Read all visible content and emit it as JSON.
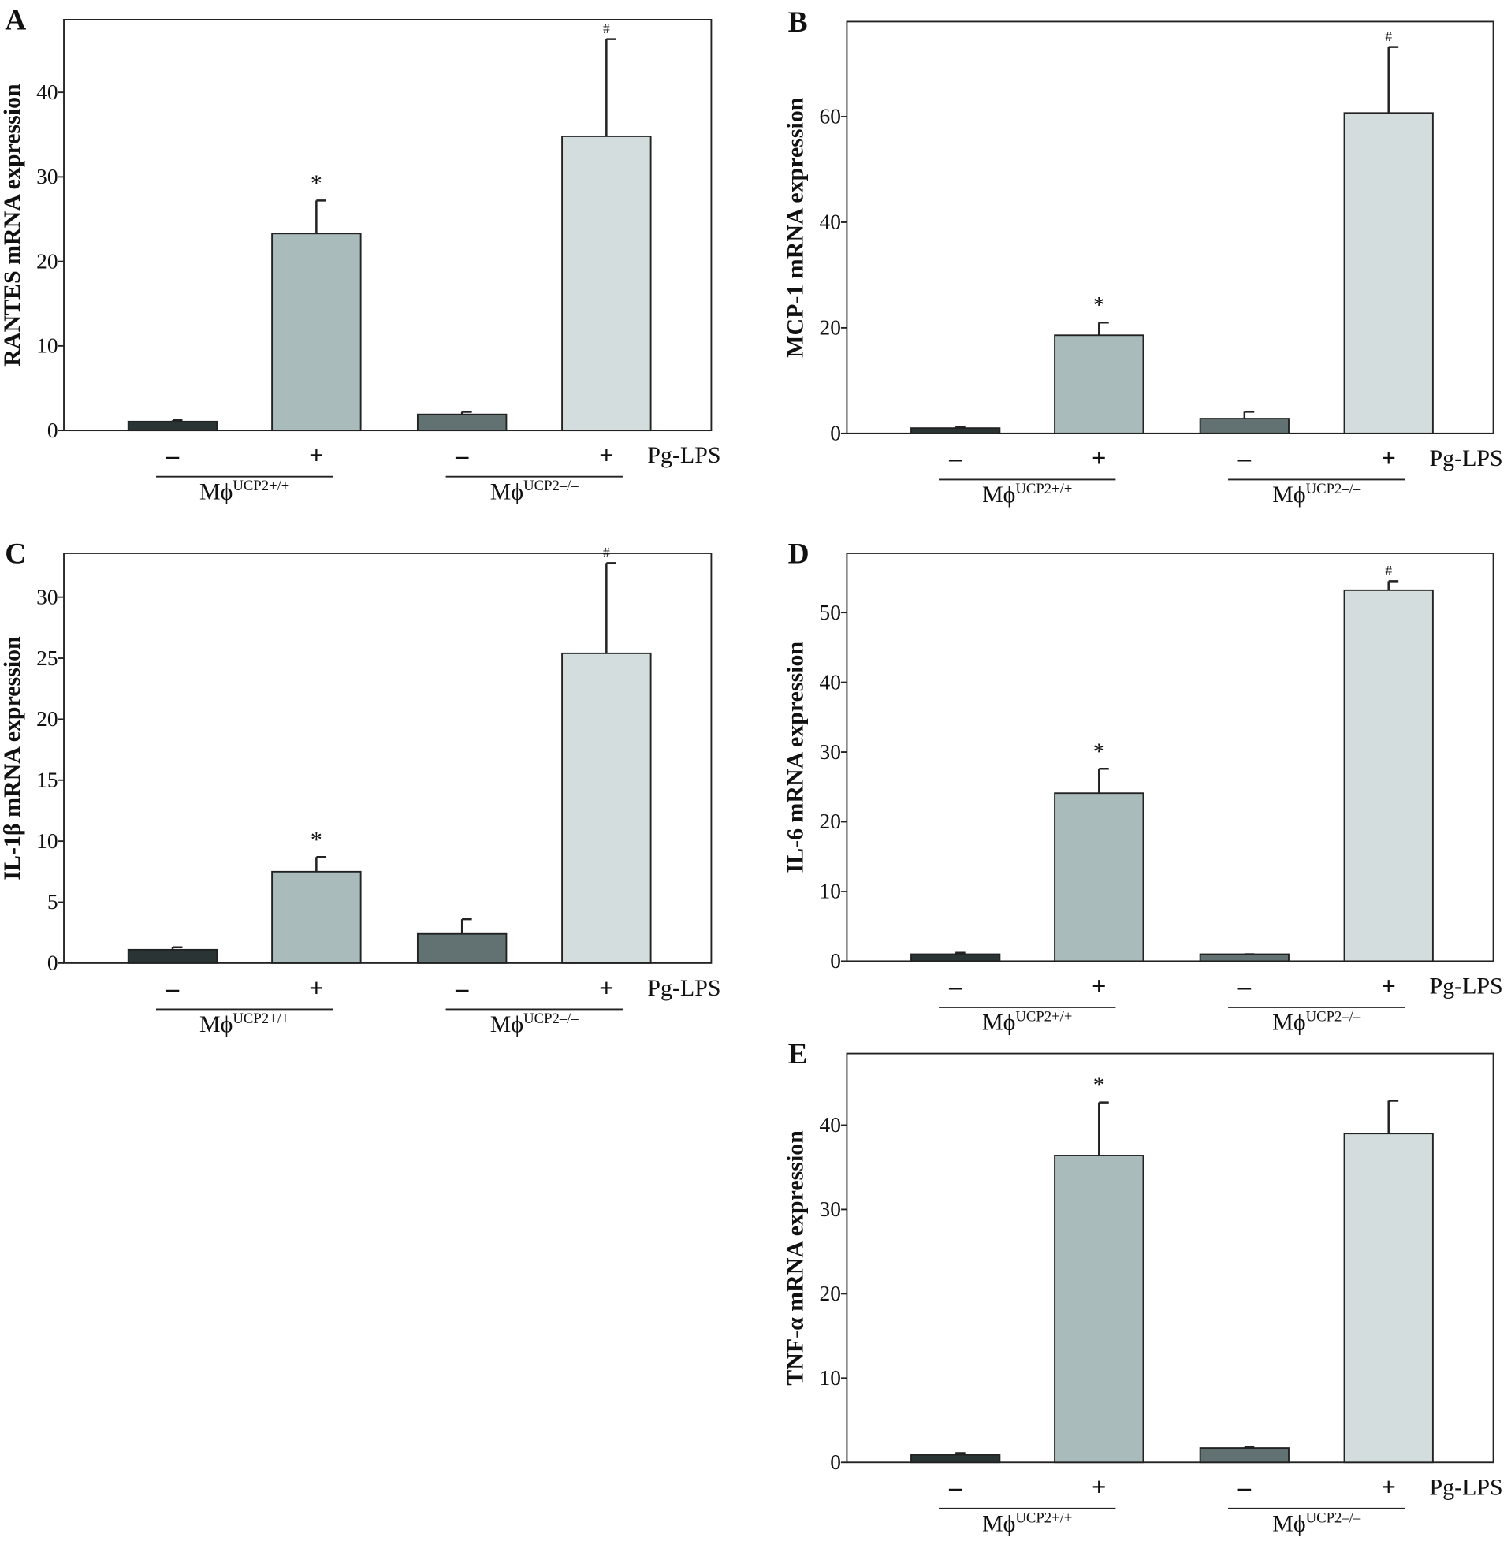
{
  "chart_data": [
    {
      "type": "bar",
      "panel": "A",
      "ylabel": "RANTES mRNA expression",
      "categories": [
        "–",
        "+",
        "–",
        "+"
      ],
      "xlabel": "Pg-LPS",
      "groups": [
        {
          "text": "Mϕ",
          "superscript": "UCP2+/+"
        },
        {
          "text": "Mϕ",
          "superscript": "UCP2–/–"
        }
      ],
      "values": [
        1.05,
        23.3,
        1.9,
        34.8
      ],
      "errors": [
        0.15,
        3.9,
        0.3,
        11.5
      ],
      "annotations": [
        null,
        "*",
        null,
        "#"
      ],
      "colors": [
        "#2a3434",
        "#a9bbbb",
        "#627272",
        "#d4dddd"
      ],
      "ylim": [
        0,
        48.6
      ],
      "yticks": [
        0,
        10,
        20,
        30,
        40
      ]
    },
    {
      "type": "bar",
      "panel": "B",
      "ylabel": "MCP-1 mRNA expression",
      "categories": [
        "–",
        "+",
        "–",
        "+"
      ],
      "xlabel": "Pg-LPS",
      "groups": [
        {
          "text": "Mϕ",
          "superscript": "UCP2+/+"
        },
        {
          "text": "Mϕ",
          "superscript": "UCP2–/–"
        }
      ],
      "values": [
        1.0,
        18.6,
        2.8,
        60.7
      ],
      "errors": [
        0.2,
        2.4,
        1.3,
        12.5
      ],
      "annotations": [
        null,
        "*",
        null,
        "#"
      ],
      "colors": [
        "#2a3434",
        "#a9bbbb",
        "#627272",
        "#d4dddd"
      ],
      "ylim": [
        0,
        78.0
      ],
      "yticks": [
        0,
        20,
        40,
        60
      ]
    },
    {
      "type": "bar",
      "panel": "C",
      "ylabel": "IL-1β mRNA expression",
      "categories": [
        "–",
        "+",
        "–",
        "+"
      ],
      "xlabel": "Pg-LPS",
      "groups": [
        {
          "text": "Mϕ",
          "superscript": "UCP2+/+"
        },
        {
          "text": "Mϕ",
          "superscript": "UCP2–/–"
        }
      ],
      "values": [
        1.1,
        7.5,
        2.4,
        25.4
      ],
      "errors": [
        0.2,
        1.2,
        1.2,
        7.4
      ],
      "annotations": [
        null,
        "*",
        null,
        "#"
      ],
      "colors": [
        "#2a3434",
        "#a9bbbb",
        "#627272",
        "#d4dddd"
      ],
      "ylim": [
        0,
        33.6
      ],
      "yticks": [
        0,
        5,
        10,
        15,
        20,
        25,
        30
      ]
    },
    {
      "type": "bar",
      "panel": "D",
      "ylabel": "IL-6 mRNA expression",
      "categories": [
        "–",
        "+",
        "–",
        "+"
      ],
      "xlabel": "Pg-LPS",
      "groups": [
        {
          "text": "Mϕ",
          "superscript": "UCP2+/+"
        },
        {
          "text": "Mϕ",
          "superscript": "UCP2–/–"
        }
      ],
      "values": [
        1.0,
        24.1,
        1.0,
        53.2
      ],
      "errors": [
        0.2,
        3.5,
        0,
        1.3
      ],
      "annotations": [
        null,
        "*",
        null,
        "#"
      ],
      "colors": [
        "#2a3434",
        "#a9bbbb",
        "#627272",
        "#d4dddd"
      ],
      "ylim": [
        0,
        58.5
      ],
      "yticks": [
        0,
        10,
        20,
        30,
        40,
        50
      ]
    },
    {
      "type": "bar",
      "panel": "E",
      "ylabel": "TNF-α mRNA expression",
      "categories": [
        "–",
        "+",
        "–",
        "+"
      ],
      "xlabel": "Pg-LPS",
      "groups": [
        {
          "text": "Mϕ",
          "superscript": "UCP2+/+"
        },
        {
          "text": "Mϕ",
          "superscript": "UCP2–/–"
        }
      ],
      "values": [
        0.9,
        36.4,
        1.7,
        39.0
      ],
      "errors": [
        0.2,
        6.3,
        0.1,
        3.9
      ],
      "annotations": [
        null,
        "*",
        null,
        null
      ],
      "colors": [
        "#2a3434",
        "#a9bbbb",
        "#627272",
        "#d4dddd"
      ],
      "ylim": [
        0,
        48.5
      ],
      "yticks": [
        0,
        10,
        20,
        30,
        40
      ]
    }
  ]
}
